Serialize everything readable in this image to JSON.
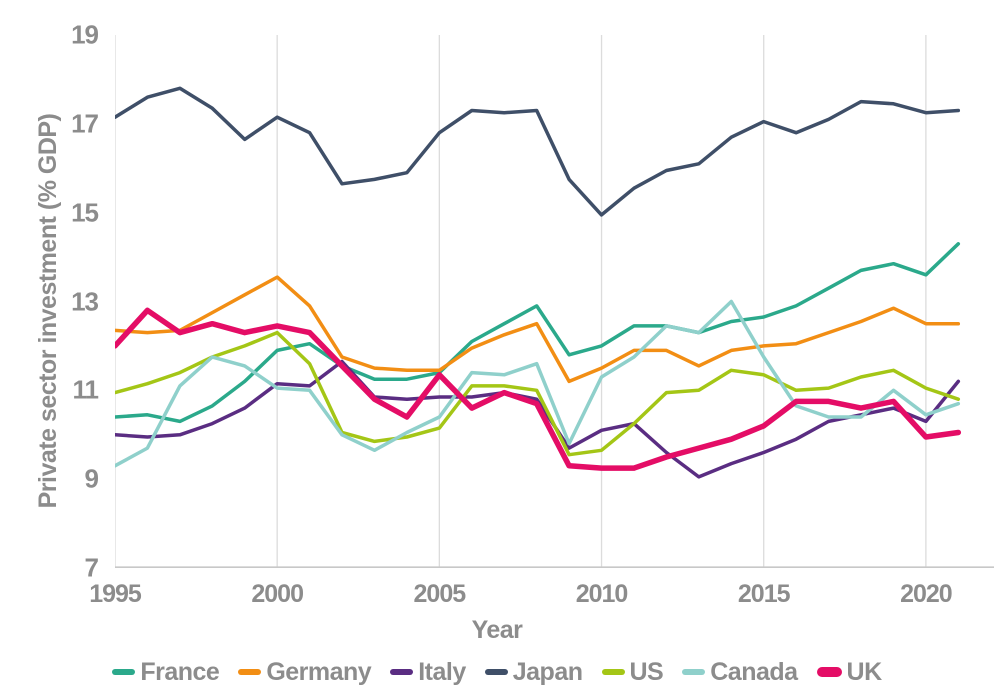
{
  "chart_data": {
    "type": "line",
    "title": "",
    "xlabel": "Year",
    "ylabel": "Private sector investment (% GDP)",
    "xlim": [
      1995,
      2022.1
    ],
    "ylim": [
      7,
      19
    ],
    "x_ticks": [
      "1995",
      "2000",
      "2005",
      "2010",
      "2015",
      "2020"
    ],
    "y_ticks": [
      "7",
      "9",
      "11",
      "13",
      "15",
      "17",
      "19"
    ],
    "grid": "vertical-gridlines-only",
    "legend_position": "bottom-center",
    "grid_color": "#dcdcdc",
    "axis_color": "#c8c8c8",
    "text_color": "#8c8c8c",
    "years": [
      1995,
      1996,
      1997,
      1998,
      1999,
      2000,
      2001,
      2002,
      2003,
      2004,
      2005,
      2006,
      2007,
      2008,
      2009,
      2010,
      2011,
      2012,
      2013,
      2014,
      2015,
      2016,
      2017,
      2018,
      2019,
      2020,
      2021
    ],
    "series": [
      {
        "name": "France",
        "color": "#2BA98B",
        "width": 3.5,
        "values": [
          10.4,
          10.45,
          10.3,
          10.65,
          11.2,
          11.9,
          12.05,
          11.55,
          11.25,
          11.25,
          11.4,
          12.1,
          12.5,
          12.9,
          11.8,
          12.0,
          12.45,
          12.45,
          12.3,
          12.55,
          12.65,
          12.9,
          13.3,
          13.7,
          13.85,
          13.6,
          14.3
        ]
      },
      {
        "name": "Germany",
        "color": "#F28E14",
        "width": 3.5,
        "values": [
          12.35,
          12.3,
          12.35,
          12.75,
          13.15,
          13.55,
          12.9,
          11.75,
          11.5,
          11.45,
          11.45,
          11.95,
          12.25,
          12.5,
          11.2,
          11.5,
          11.9,
          11.9,
          11.55,
          11.9,
          12.0,
          12.05,
          12.3,
          12.55,
          12.85,
          12.5,
          12.5
        ]
      },
      {
        "name": "Italy",
        "color": "#5A2D82",
        "width": 3.5,
        "values": [
          10.0,
          9.95,
          10.0,
          10.25,
          10.6,
          11.15,
          11.1,
          11.65,
          10.85,
          10.8,
          10.85,
          10.85,
          10.95,
          10.8,
          9.7,
          10.1,
          10.25,
          9.6,
          9.05,
          9.35,
          9.6,
          9.9,
          10.3,
          10.45,
          10.6,
          10.3,
          11.2
        ]
      },
      {
        "name": "Japan",
        "color": "#3F4F68",
        "width": 3.5,
        "values": [
          17.15,
          17.6,
          17.8,
          17.35,
          16.65,
          17.15,
          16.8,
          15.65,
          15.75,
          15.9,
          16.8,
          17.3,
          17.25,
          17.3,
          15.75,
          14.95,
          15.55,
          15.95,
          16.1,
          16.7,
          17.05,
          16.8,
          17.1,
          17.5,
          17.45,
          17.25,
          17.3
        ]
      },
      {
        "name": "US",
        "color": "#A4C616",
        "width": 3.5,
        "values": [
          10.95,
          11.15,
          11.4,
          11.75,
          12.0,
          12.3,
          11.6,
          10.05,
          9.85,
          9.95,
          10.15,
          11.1,
          11.1,
          11.0,
          9.55,
          9.65,
          10.25,
          10.95,
          11.0,
          11.45,
          11.35,
          11.0,
          11.05,
          11.3,
          11.45,
          11.05,
          10.8
        ]
      },
      {
        "name": "Canada",
        "color": "#8FD0CB",
        "width": 3.5,
        "values": [
          9.3,
          9.7,
          11.1,
          11.75,
          11.55,
          11.05,
          11.0,
          10.0,
          9.65,
          10.05,
          10.4,
          11.4,
          11.35,
          11.6,
          9.8,
          11.3,
          11.75,
          12.45,
          12.3,
          13.0,
          11.75,
          10.65,
          10.4,
          10.4,
          11.0,
          10.45,
          10.7
        ]
      },
      {
        "name": "UK",
        "color": "#E40D66",
        "width": 5.5,
        "values": [
          12.0,
          12.8,
          12.3,
          12.5,
          12.3,
          12.45,
          12.3,
          11.55,
          10.8,
          10.4,
          11.35,
          10.6,
          10.95,
          10.7,
          9.3,
          9.25,
          9.25,
          9.5,
          9.7,
          9.9,
          10.2,
          10.75,
          10.75,
          10.6,
          10.75,
          9.95,
          10.05
        ]
      }
    ]
  }
}
